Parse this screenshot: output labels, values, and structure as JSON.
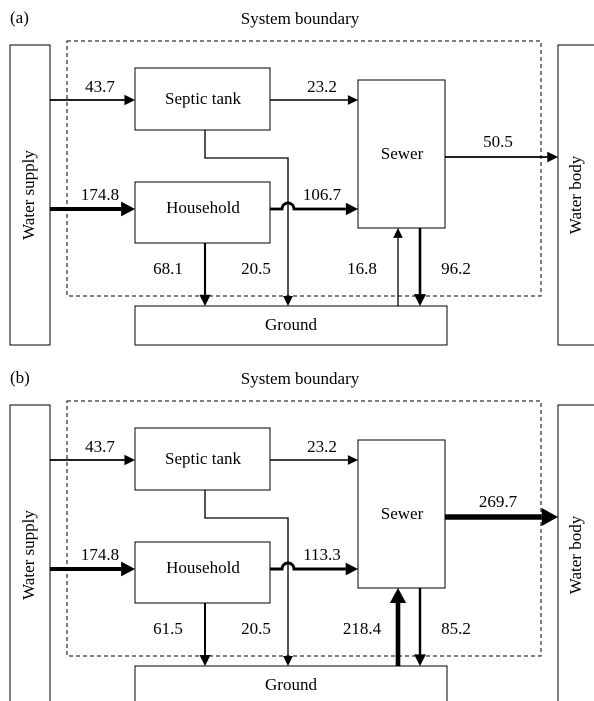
{
  "panels": [
    {
      "label": "(a)",
      "boundary": "System boundary",
      "nodes": {
        "water_supply": "Water supply",
        "septic_tank": "Septic tank",
        "household": "Household",
        "sewer": "Sewer",
        "ground": "Ground",
        "water_body": "Water body"
      },
      "flows": [
        43.7,
        23.2,
        174.8,
        106.7,
        68.1,
        20.5,
        16.8,
        96.2,
        50.5
      ]
    },
    {
      "label": "(b)",
      "boundary": "System boundary",
      "nodes": {
        "water_supply": "Water supply",
        "septic_tank": "Septic tank",
        "household": "Household",
        "sewer": "Sewer",
        "ground": "Ground",
        "water_body": "Water body"
      },
      "flows": [
        43.7,
        23.2,
        174.8,
        113.3,
        61.5,
        20.5,
        218.4,
        85.2,
        269.7
      ]
    }
  ]
}
